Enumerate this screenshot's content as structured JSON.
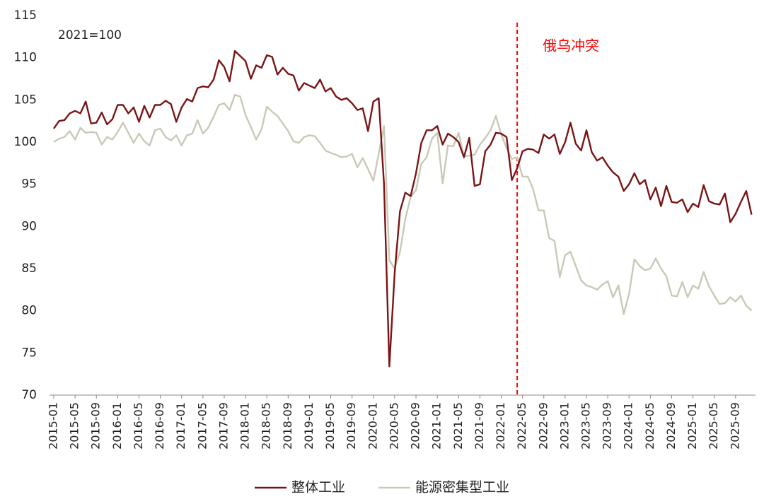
{
  "chart_data": {
    "type": "line",
    "annotations": [
      {
        "text": "2021=100"
      },
      {
        "text": "俄乌冲突",
        "x_index": 87,
        "color": "#ff0000"
      }
    ],
    "categories": [
      "2015-01",
      null,
      null,
      null,
      "2015-05",
      null,
      null,
      null,
      "2015-09",
      null,
      null,
      null,
      "2016-01",
      null,
      null,
      null,
      "2016-05",
      null,
      null,
      null,
      "2016-09",
      null,
      null,
      null,
      "2017-01",
      null,
      null,
      null,
      "2017-05",
      null,
      null,
      null,
      "2017-09",
      null,
      null,
      null,
      "2018-01",
      null,
      null,
      null,
      "2018-05",
      null,
      null,
      null,
      "2018-09",
      null,
      null,
      null,
      "2019-01",
      null,
      null,
      null,
      "2019-05",
      null,
      null,
      null,
      "2019-09",
      null,
      null,
      null,
      "2020-01",
      null,
      null,
      null,
      "2020-05",
      null,
      null,
      null,
      "2020-09",
      null,
      null,
      null,
      "2021-01",
      null,
      null,
      null,
      "2021-05",
      null,
      null,
      null,
      "2021-09",
      null,
      null,
      null,
      "2022-01",
      null,
      null,
      null,
      "2022-05",
      null,
      null,
      null,
      "2022-09",
      null,
      null,
      null,
      "2023-01",
      null,
      null,
      null,
      "2023-05",
      null,
      null,
      null,
      "2023-09",
      null,
      null,
      null,
      "2024-01",
      null,
      null,
      null,
      "2024-05",
      null,
      null,
      null,
      "2024-09",
      null,
      null,
      null,
      "2025-01",
      null,
      null,
      null,
      "2025-05",
      null,
      null,
      null,
      "2025-09",
      null,
      null,
      null
    ],
    "series": [
      {
        "name": "整体工业",
        "color": "#7b1416",
        "values": [
          101.6,
          102.5,
          102.6,
          103.4,
          103.7,
          103.4,
          104.8,
          102.2,
          102.3,
          103.5,
          102.1,
          102.7,
          104.4,
          104.4,
          103.4,
          104.1,
          102.4,
          104.3,
          102.9,
          104.4,
          104.4,
          104.9,
          104.5,
          102.4,
          104.1,
          105.1,
          104.8,
          106.4,
          106.6,
          106.5,
          107.4,
          109.7,
          108.9,
          107.2,
          110.8,
          110.2,
          109.6,
          107.5,
          109.1,
          108.8,
          110.3,
          110.1,
          108.0,
          108.8,
          108.1,
          107.9,
          106.1,
          107.0,
          106.7,
          106.4,
          107.4,
          106.0,
          106.4,
          105.4,
          105.0,
          105.2,
          104.6,
          103.8,
          104.0,
          101.3,
          104.8,
          105.2,
          95.0,
          73.4,
          84.5,
          91.8,
          94.0,
          93.6,
          96.3,
          99.9,
          101.4,
          101.4,
          101.9,
          99.7,
          101.0,
          100.6,
          100.0,
          98.2,
          100.5,
          94.8,
          95.0,
          98.9,
          99.7,
          101.1,
          101.0,
          100.6,
          95.5,
          96.9,
          98.9,
          99.2,
          99.1,
          98.7,
          100.9,
          100.4,
          100.9,
          98.6,
          100.0,
          102.3,
          99.8,
          99.0,
          101.4,
          98.8,
          97.8,
          98.2,
          97.2,
          96.4,
          95.9,
          94.2,
          95.0,
          96.3,
          95.0,
          95.5,
          93.2,
          94.6,
          92.4,
          94.8,
          92.9,
          92.8,
          93.2,
          91.7,
          92.7,
          92.3,
          94.9,
          93.0,
          92.7,
          92.6,
          93.9,
          90.5,
          91.5,
          92.9,
          94.2,
          91.4
        ]
      },
      {
        "name": "能源密集型工业",
        "color": "#c9c9b6",
        "values": [
          100.0,
          100.4,
          100.6,
          101.3,
          100.3,
          101.7,
          101.1,
          101.2,
          101.1,
          99.7,
          100.6,
          100.3,
          101.2,
          102.3,
          101.1,
          99.9,
          101.0,
          100.1,
          99.6,
          101.4,
          101.6,
          100.6,
          100.2,
          100.8,
          99.6,
          100.8,
          101.0,
          102.6,
          101.0,
          101.7,
          103.0,
          104.4,
          104.6,
          103.8,
          105.6,
          105.4,
          103.2,
          101.8,
          100.3,
          101.5,
          104.2,
          103.6,
          103.1,
          102.2,
          101.3,
          100.1,
          99.9,
          100.6,
          100.8,
          100.7,
          99.9,
          99.0,
          98.7,
          98.5,
          98.2,
          98.3,
          98.6,
          97.0,
          98.1,
          96.8,
          95.4,
          98.6,
          101.9,
          86.0,
          85.0,
          87.0,
          90.9,
          93.5,
          94.3,
          97.4,
          98.2,
          100.4,
          101.1,
          95.1,
          99.6,
          99.5,
          101.1,
          98.3,
          98.4,
          98.5,
          99.7,
          100.5,
          101.4,
          103.1,
          100.9,
          99.3,
          98.0,
          98.2,
          95.9,
          95.9,
          94.4,
          91.9,
          91.9,
          88.6,
          88.3,
          84.0,
          86.6,
          87.0,
          85.3,
          83.6,
          83.0,
          82.8,
          82.5,
          83.1,
          83.5,
          81.6,
          83.0,
          79.6,
          82.0,
          86.1,
          85.3,
          84.8,
          85.0,
          86.2,
          85.0,
          84.1,
          81.8,
          81.7,
          83.4,
          81.6,
          83.0,
          82.6,
          84.6,
          82.9,
          81.8,
          80.8,
          80.9,
          81.6,
          81.1,
          81.8,
          80.6,
          80.0
        ]
      }
    ],
    "ylim": [
      70,
      115
    ],
    "yticks": [
      70,
      75,
      80,
      85,
      90,
      95,
      100,
      105,
      110,
      115
    ],
    "grid": false
  }
}
